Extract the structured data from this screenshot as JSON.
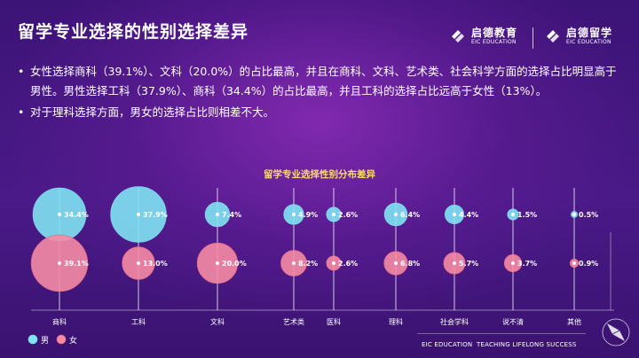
{
  "page": {
    "title": "留学专业选择的性别选择差异",
    "logos": [
      {
        "cn": "启德教育",
        "en": "EIC EDUCATION"
      },
      {
        "cn": "启德留学",
        "en": "EIC EDUCATION"
      }
    ],
    "bullets": [
      "女性选择商科（39.1%）、文科（20.0%）的占比最高，并且在商科、文科、艺术类、社会科学方面的选择占比明显高于男性。男性选择工科（37.9%）、商科（34.4%）的占比最高，并且工科的选择占比远高于女性（13%）。",
      "对于理科选择方面，男女的选择占比则相差不大。"
    ],
    "footer": {
      "left": "EIC EDUCATION",
      "right": "TEACHING LIFELONG SUCCESS"
    }
  },
  "colors": {
    "male": "#7fe3f2",
    "female": "#f58ba4",
    "female_stroke": "#e8647f",
    "title": "#ffdc64"
  },
  "chart_data": {
    "type": "bubble",
    "title": "留学专业选择性别分布差异",
    "categories": [
      "商科",
      "工科",
      "文科",
      "艺术类",
      "医科",
      "理科",
      "社会学科",
      "说不清",
      "其他"
    ],
    "series": [
      {
        "name": "男",
        "values": [
          34.4,
          37.9,
          7.4,
          4.9,
          2.6,
          6.4,
          4.4,
          1.5,
          0.5
        ]
      },
      {
        "name": "女",
        "values": [
          39.1,
          13.0,
          20.0,
          8.2,
          2.6,
          6.8,
          5.7,
          3.7,
          0.9
        ]
      }
    ],
    "value_suffix": "%",
    "legend": [
      "男",
      "女"
    ],
    "legend_position": "bottom-left"
  }
}
